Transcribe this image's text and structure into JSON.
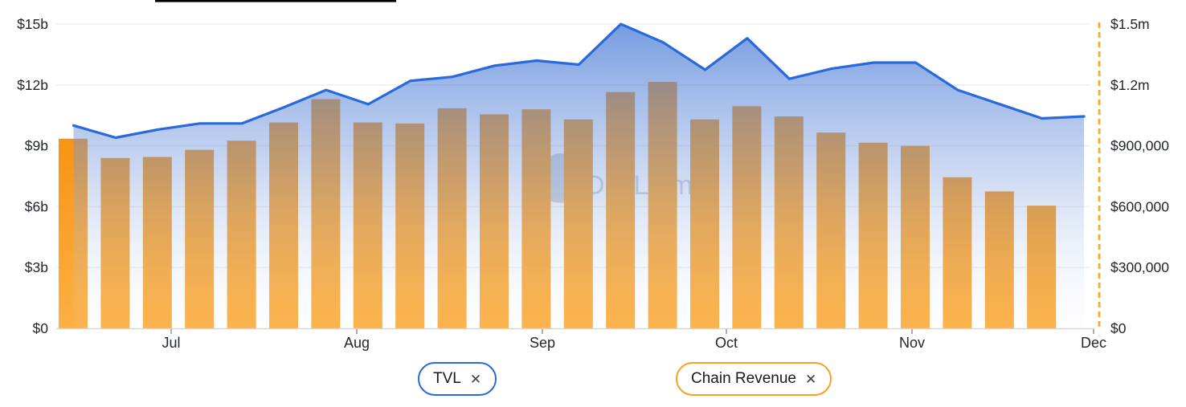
{
  "colors": {
    "tvl_line": "#2a69da",
    "tvl_area_top": "#3e74d5",
    "tvl_area_bottom": "#dfe9f7",
    "revenue_bar_top": "#f79413",
    "revenue_bar_bottom": "#fdb044",
    "right_axis_dash": "#f9a62e",
    "grid_line": "#efefef",
    "axis_line": "#d6d6d6",
    "tick_text": "#22262d",
    "watermark_gray": "#9aa4b1",
    "top_rule": "#000000"
  },
  "watermark": {
    "text": "DefiLlama",
    "icon": "llama-logo-icon"
  },
  "legend": [
    {
      "label": "TVL",
      "close_icon": "✕",
      "color": "#2a69da"
    },
    {
      "label": "Chain Revenue",
      "close_icon": "✕",
      "color": "#f9a11c"
    }
  ],
  "chart_data": {
    "type": "combo",
    "subtype": "area-line + bar, weekly points",
    "title": "",
    "x_axis": {
      "month_labels": [
        "Jul",
        "Aug",
        "Sep",
        "Oct",
        "Nov",
        "Dec"
      ]
    },
    "left_axis": {
      "label": "TVL",
      "ticks": [
        "$0",
        "$3b",
        "$6b",
        "$9b",
        "$12b",
        "$15b"
      ],
      "min": 0,
      "max": 15000000000
    },
    "right_axis": {
      "label": "Chain Revenue",
      "ticks": [
        "$0",
        "$300,000",
        "$600,000",
        "$900,000",
        "$1.2m",
        "$1.5m"
      ],
      "min": 0,
      "max": 1500000
    },
    "grid": true,
    "legend_position": "bottom",
    "series": [
      {
        "name": "TVL",
        "type": "area-line",
        "axis": "left",
        "color": "#2a69da",
        "unit": "USD billions",
        "values": [
          10.0,
          9.4,
          9.8,
          10.1,
          10.1,
          10.9,
          11.75,
          11.05,
          12.2,
          12.4,
          12.95,
          13.2,
          13.0,
          15.0,
          14.1,
          12.75,
          14.3,
          12.3,
          12.8,
          13.1,
          13.1,
          11.75,
          11.05,
          10.35,
          10.45
        ]
      },
      {
        "name": "Chain Revenue",
        "type": "bar",
        "axis": "right",
        "color": "#f9a11c",
        "unit": "USD",
        "values": [
          935000,
          840000,
          845000,
          880000,
          925000,
          1015000,
          1130000,
          1015000,
          1010000,
          1085000,
          1055000,
          1080000,
          1030000,
          1165000,
          1215000,
          1030000,
          1095000,
          1045000,
          965000,
          915000,
          900000,
          745000,
          675000,
          605000
        ]
      }
    ]
  }
}
